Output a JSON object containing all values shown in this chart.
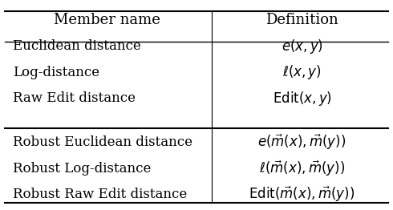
{
  "header": [
    "Member name",
    "Definition"
  ],
  "rows_group1": [
    [
      "Euclidean distance",
      "$e(x, y)$"
    ],
    [
      "Log-distance",
      "$\\ell(x, y)$"
    ],
    [
      "Raw Edit distance",
      "$\\mathrm{Edit}(x, y)$"
    ]
  ],
  "rows_group2": [
    [
      "Robust Euclidean distance",
      "$e(\\vec{m}(x), \\vec{m}(y))$"
    ],
    [
      "Robust Log-distance",
      "$\\ell(\\vec{m}(x), \\vec{m}(y))$"
    ],
    [
      "Robust Raw Edit distance",
      "$\\mathrm{Edit}(\\vec{m}(x), \\vec{m}(y))$"
    ]
  ],
  "col_split": 0.54,
  "header_fontsize": 13,
  "row_fontsize": 12
}
